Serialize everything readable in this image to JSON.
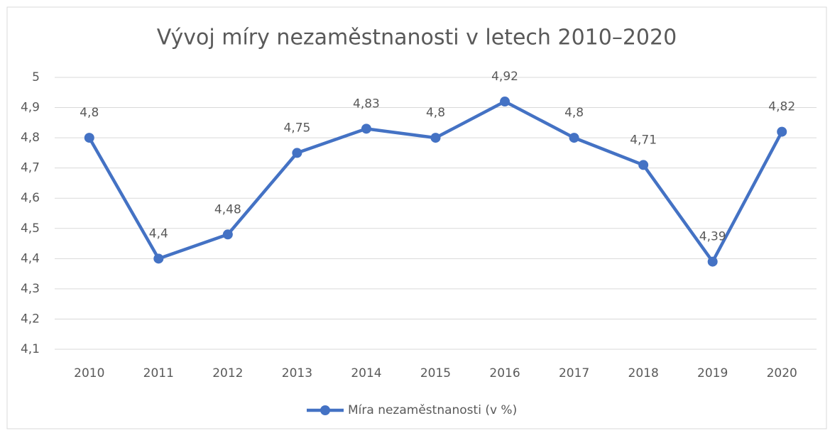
{
  "chart_data": {
    "type": "line",
    "title": "Vývoj míry nezaměstnanosti v letech 2010–2020",
    "categories": [
      "2010",
      "2011",
      "2012",
      "2013",
      "2014",
      "2015",
      "2016",
      "2017",
      "2018",
      "2019",
      "2020"
    ],
    "series": [
      {
        "name": "Míra nezaměstnanosti (v %)",
        "color": "#4472c4",
        "values": [
          4.8,
          4.4,
          4.48,
          4.75,
          4.83,
          4.8,
          4.92,
          4.8,
          4.71,
          4.39,
          4.82
        ],
        "value_labels": [
          "4,8",
          "4,4",
          "4,48",
          "4,75",
          "4,83",
          "4,8",
          "4,92",
          "4,8",
          "4,71",
          "4,39",
          "4,82"
        ]
      }
    ],
    "ylim": [
      4.1,
      5
    ],
    "yticks": [
      {
        "value": 4.1,
        "label": "4,1"
      },
      {
        "value": 4.2,
        "label": "4,2"
      },
      {
        "value": 4.3,
        "label": "4,3"
      },
      {
        "value": 4.4,
        "label": "4,4"
      },
      {
        "value": 4.5,
        "label": "4,5"
      },
      {
        "value": 4.6,
        "label": "4,6"
      },
      {
        "value": 4.7,
        "label": "4,7"
      },
      {
        "value": 4.8,
        "label": "4,8"
      },
      {
        "value": 4.9,
        "label": "4,9"
      },
      5
    ],
    "grid": true,
    "legend": "bottom"
  }
}
